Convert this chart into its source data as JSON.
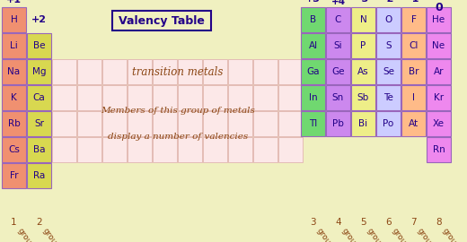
{
  "bg_color": "#f0f0c0",
  "cell_colors": {
    "group1": "#f09070",
    "group2": "#d8d850",
    "group3": "#70d870",
    "group4": "#cc88ee",
    "group5": "#eeee88",
    "group6": "#ccccff",
    "group7": "#ffbb88",
    "group8": "#ee88ee",
    "transition": "#fce8e8",
    "trans_border": "#ddaaaa"
  },
  "text_color": "#220088",
  "label_color": "#8B4513",
  "valency_color": "#220088",
  "title": "Valency Table",
  "annotation1": "transition metals",
  "annotation2_line1": "Members of this group of metals",
  "annotation2_line2": "display a number of valencies",
  "group1_elements": [
    "H",
    "Li",
    "Na",
    "K",
    "Rb",
    "Cs",
    "Fr"
  ],
  "group2_elements": [
    "Be",
    "Mg",
    "Ca",
    "Sr",
    "Ba",
    "Ra"
  ],
  "group3_elements": [
    "B",
    "Al",
    "Ga",
    "In",
    "Tl"
  ],
  "group4_elements": [
    "C",
    "Si",
    "Ge",
    "Sn",
    "Pb"
  ],
  "group5_elements": [
    "N",
    "P",
    "As",
    "Sb",
    "Bi"
  ],
  "group6_elements": [
    "O",
    "S",
    "Se",
    "Te",
    "Po"
  ],
  "group7_elements": [
    "F",
    "Cl",
    "Br",
    "I",
    "At"
  ],
  "group8_elements": [
    "He",
    "Ne",
    "Ar",
    "Kr",
    "Xe",
    "Rn"
  ],
  "group_numbers": [
    "1",
    "2",
    "3",
    "4",
    "5",
    "6",
    "7",
    "8"
  ]
}
